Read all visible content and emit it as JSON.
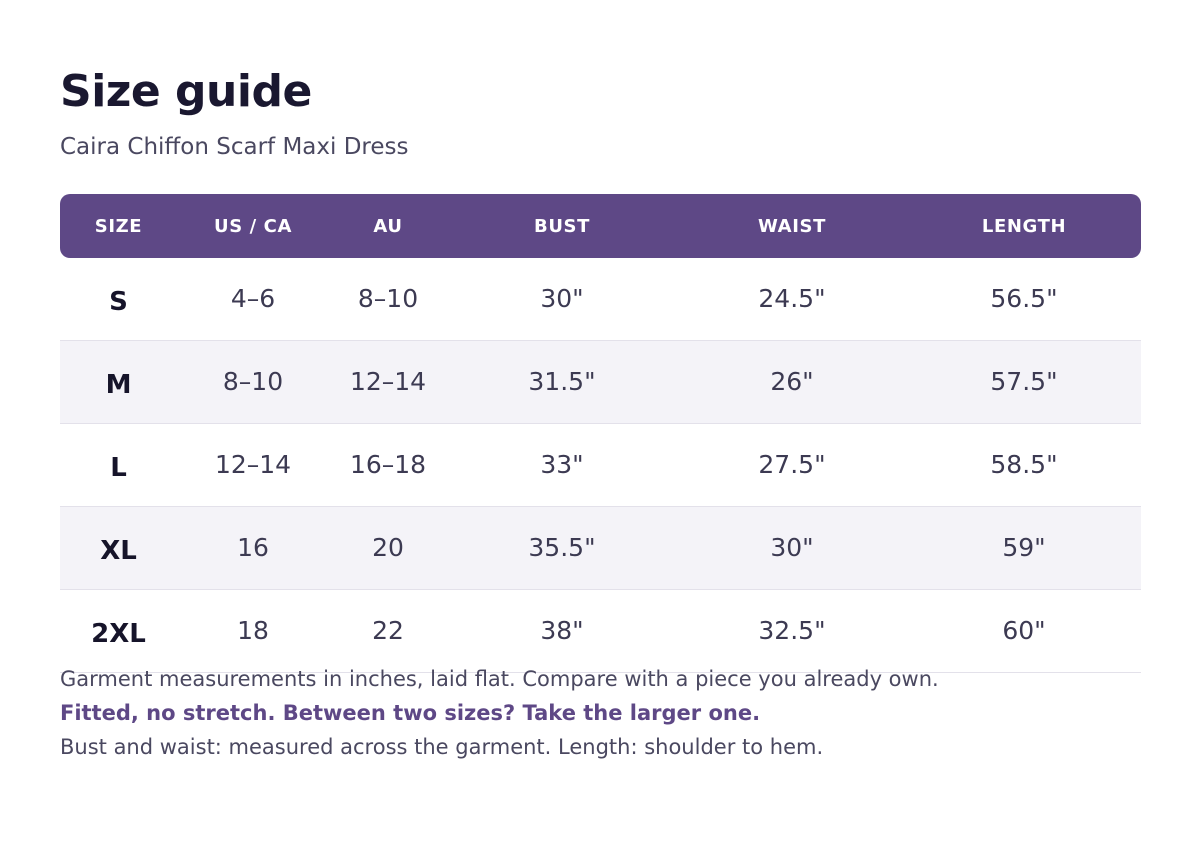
{
  "header": {
    "title": "Size guide",
    "subtitle": "Caira Chiffon Scarf Maxi Dress"
  },
  "table": {
    "columns": [
      "SIZE",
      "US / CA",
      "AU",
      "BUST",
      "WAIST",
      "LENGTH"
    ],
    "rows": [
      [
        "S",
        "4–6",
        "8–10",
        "30\"",
        "24.5\"",
        "56.5\""
      ],
      [
        "M",
        "8–10",
        "12–14",
        "31.5\"",
        "26\"",
        "57.5\""
      ],
      [
        "L",
        "12–14",
        "16–18",
        "33\"",
        "27.5\"",
        "58.5\""
      ],
      [
        "XL",
        "16",
        "20",
        "35.5\"",
        "30\"",
        "59\""
      ],
      [
        "2XL",
        "18",
        "22",
        "38\"",
        "32.5\"",
        "60\""
      ]
    ]
  },
  "notes": {
    "line1": "Garment measurements in inches, laid flat. Compare with a piece you already own.",
    "line2": "Fitted, no stretch. Between two sizes? Take the larger one.",
    "line3": "Bust and waist: measured across the garment.  Length: shoulder to hem."
  },
  "colors": {
    "header_bg": "#5e4886",
    "accent_text": "#5e4886",
    "stripe_bg": "#f4f3f8"
  }
}
